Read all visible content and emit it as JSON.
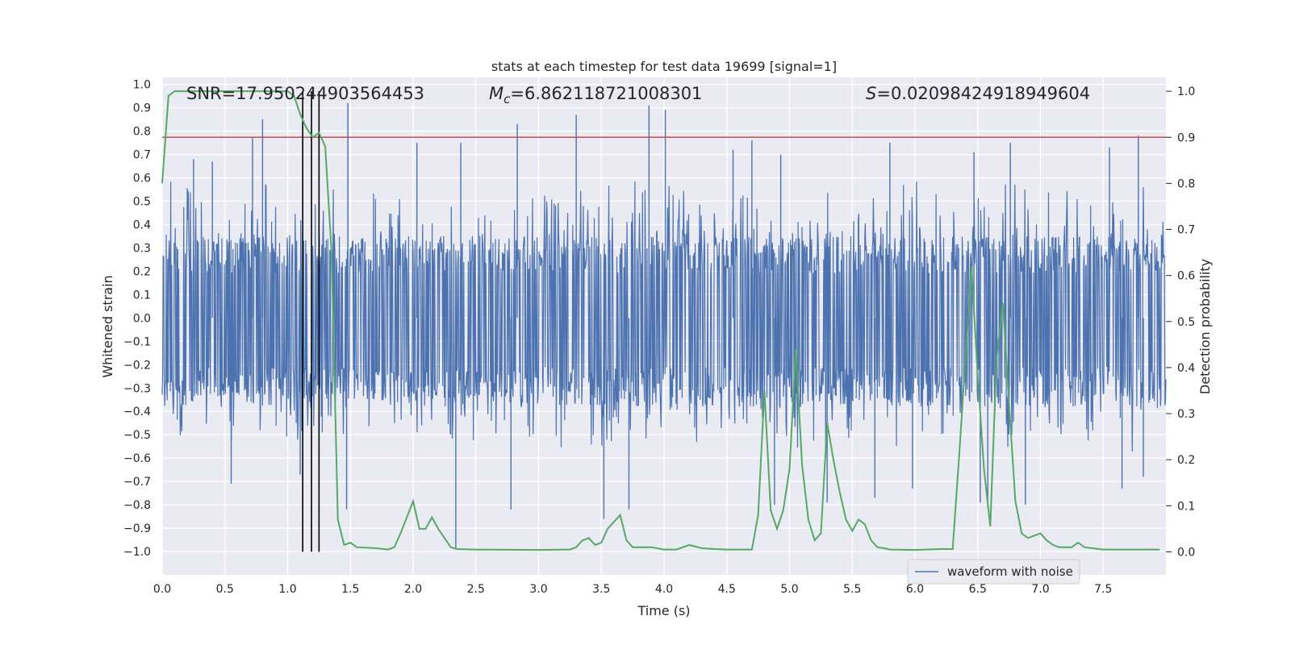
{
  "chart_data": {
    "type": "line",
    "title": "stats at each timestep for test data 19699 [signal=1]",
    "xlabel": "Time (s)",
    "ylabel_left": "Whitened strain",
    "ylabel_right": "Detection probability",
    "xlim": [
      0.0,
      8.0
    ],
    "ylim_left": [
      -1.1,
      1.03
    ],
    "ylim_right": [
      -0.05,
      1.03
    ],
    "x_ticks": [
      "0.0",
      "0.5",
      "1.0",
      "1.5",
      "2.0",
      "2.5",
      "3.0",
      "3.5",
      "4.0",
      "4.5",
      "5.0",
      "5.5",
      "6.0",
      "6.5",
      "7.0",
      "7.5"
    ],
    "y_left_ticks": [
      "1.0",
      "0.9",
      "0.8",
      "0.7",
      "0.6",
      "0.5",
      "0.4",
      "0.3",
      "0.2",
      "0.1",
      "0.0",
      "-0.1",
      "-0.2",
      "-0.3",
      "-0.4",
      "-0.5",
      "-0.6",
      "-0.7",
      "-0.8",
      "-0.9",
      "-1.0"
    ],
    "y_right_ticks": [
      "1.0",
      "0.9",
      "0.8",
      "0.7",
      "0.6",
      "0.5",
      "0.4",
      "0.3",
      "0.2",
      "0.1",
      "0.0"
    ],
    "annotations": {
      "snr": "SNR=17.950244903564453",
      "mc_symbol": "M",
      "mc_sub": "c",
      "mc_value": "=6.862118721008301",
      "s_symbol": "S",
      "s_value": "=0.02098424918949604"
    },
    "legend": {
      "label": "waveform with noise",
      "position": "lower-right"
    },
    "threshold": {
      "probability": 0.9,
      "color": "#c44e52"
    },
    "vertical_markers": [
      1.12,
      1.19,
      1.25
    ],
    "waveform": {
      "name": "waveform with noise",
      "color": "#4c72b0",
      "time_range": [
        0.0,
        8.0
      ],
      "sample_rate_hz": 250,
      "band_upper": 0.35,
      "band_lower": -0.38,
      "spikes": [
        [
          0.8,
          0.85
        ],
        [
          0.72,
          0.77
        ],
        [
          0.55,
          -0.71
        ],
        [
          1.1,
          -0.67
        ],
        [
          1.48,
          0.92
        ],
        [
          1.47,
          -0.82
        ],
        [
          2.03,
          0.75
        ],
        [
          2.34,
          -0.99
        ],
        [
          2.38,
          0.75
        ],
        [
          2.83,
          0.83
        ],
        [
          2.78,
          -0.82
        ],
        [
          3.3,
          0.87
        ],
        [
          3.52,
          -0.86
        ],
        [
          3.72,
          -0.82
        ],
        [
          3.88,
          0.91
        ],
        [
          4.01,
          0.89
        ],
        [
          4.55,
          0.72
        ],
        [
          4.7,
          0.76
        ],
        [
          4.88,
          -0.8
        ],
        [
          4.93,
          0.7
        ],
        [
          5.3,
          -0.79
        ],
        [
          5.68,
          -0.77
        ],
        [
          5.8,
          0.75
        ],
        [
          5.98,
          -0.73
        ],
        [
          6.47,
          0.71
        ],
        [
          6.52,
          -0.79
        ],
        [
          6.58,
          -0.81
        ],
        [
          6.76,
          0.75
        ],
        [
          6.88,
          -0.8
        ],
        [
          7.55,
          0.73
        ],
        [
          7.65,
          -0.73
        ],
        [
          7.78,
          0.78
        ],
        [
          7.82,
          -0.68
        ],
        [
          0.25,
          0.68
        ],
        [
          0.4,
          0.67
        ]
      ]
    },
    "probability": {
      "name": "detection probability",
      "color": "#55a868",
      "t": [
        0.0,
        0.05,
        0.1,
        0.15,
        0.3,
        0.6,
        0.9,
        1.0,
        1.05,
        1.1,
        1.15,
        1.2,
        1.25,
        1.3,
        1.35,
        1.4,
        1.45,
        1.5,
        1.55,
        1.7,
        1.8,
        1.85,
        1.9,
        2.0,
        2.05,
        2.1,
        2.15,
        2.2,
        2.3,
        2.35,
        2.5,
        3.0,
        3.2,
        3.25,
        3.3,
        3.35,
        3.4,
        3.45,
        3.5,
        3.55,
        3.6,
        3.65,
        3.7,
        3.75,
        3.8,
        3.9,
        4.0,
        4.1,
        4.15,
        4.2,
        4.3,
        4.4,
        4.5,
        4.7,
        4.75,
        4.8,
        4.85,
        4.9,
        4.95,
        5.0,
        5.05,
        5.1,
        5.15,
        5.2,
        5.25,
        5.3,
        5.35,
        5.4,
        5.45,
        5.5,
        5.55,
        5.6,
        5.65,
        5.7,
        5.75,
        5.8,
        6.0,
        6.2,
        6.3,
        6.35,
        6.4,
        6.45,
        6.5,
        6.55,
        6.6,
        6.65,
        6.7,
        6.75,
        6.8,
        6.85,
        6.9,
        6.95,
        7.0,
        7.05,
        7.1,
        7.15,
        7.2,
        7.25,
        7.3,
        7.35,
        7.5,
        7.95
      ],
      "p": [
        0.8,
        0.99,
        1.0,
        1.0,
        1.0,
        1.0,
        1.0,
        1.0,
        0.99,
        0.95,
        0.92,
        0.9,
        0.91,
        0.88,
        0.65,
        0.07,
        0.015,
        0.02,
        0.01,
        0.008,
        0.005,
        0.01,
        0.04,
        0.11,
        0.05,
        0.05,
        0.075,
        0.05,
        0.01,
        0.006,
        0.005,
        0.004,
        0.005,
        0.005,
        0.01,
        0.025,
        0.03,
        0.015,
        0.02,
        0.05,
        0.065,
        0.08,
        0.025,
        0.01,
        0.01,
        0.01,
        0.005,
        0.005,
        0.01,
        0.015,
        0.008,
        0.006,
        0.005,
        0.005,
        0.08,
        0.35,
        0.09,
        0.05,
        0.09,
        0.18,
        0.44,
        0.19,
        0.07,
        0.025,
        0.04,
        0.28,
        0.2,
        0.13,
        0.07,
        0.045,
        0.07,
        0.06,
        0.025,
        0.01,
        0.008,
        0.005,
        0.004,
        0.006,
        0.006,
        0.2,
        0.41,
        0.62,
        0.38,
        0.18,
        0.055,
        0.42,
        0.54,
        0.32,
        0.11,
        0.04,
        0.03,
        0.035,
        0.04,
        0.025,
        0.015,
        0.01,
        0.01,
        0.01,
        0.02,
        0.01,
        0.005,
        0.005
      ]
    }
  }
}
